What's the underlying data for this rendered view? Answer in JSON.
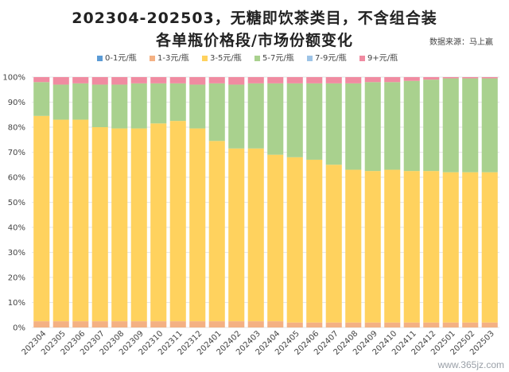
{
  "title_line1": "202304-202503，无糖即饮茶类目，不含组合装",
  "title_line2": "各单瓶价格段/市场份额变化",
  "source": "数据来源：马上赢",
  "watermark": "www.365jz.com",
  "chart_data": {
    "type": "bar",
    "stacked": true,
    "percent": true,
    "categories": [
      "202304",
      "202305",
      "202306",
      "202307",
      "202308",
      "202309",
      "202310",
      "202311",
      "202312",
      "202401",
      "202402",
      "202403",
      "202404",
      "202405",
      "202406",
      "202407",
      "202408",
      "202409",
      "202410",
      "202411",
      "202412",
      "202501",
      "202502",
      "202503"
    ],
    "series": [
      {
        "name": "0-1元/瓶",
        "color": "#5b9bd5",
        "values": [
          0,
          0,
          0,
          0,
          0,
          0,
          0,
          0,
          0,
          0,
          0,
          0,
          0,
          0,
          0,
          0,
          0,
          0,
          0,
          0,
          0,
          0,
          0,
          0
        ]
      },
      {
        "name": "1-3元/瓶",
        "color": "#f4b183",
        "values": [
          2.5,
          2.5,
          2.5,
          2.5,
          2.5,
          2.5,
          2.5,
          2.5,
          2.5,
          2.5,
          2.5,
          2.5,
          2.5,
          2,
          2,
          2,
          2,
          2,
          2,
          2,
          2,
          2,
          2,
          2
        ]
      },
      {
        "name": "3-5元/瓶",
        "color": "#ffd25e",
        "values": [
          82,
          80.5,
          80.5,
          77.5,
          77,
          77,
          79,
          80,
          77,
          72,
          69,
          69,
          66.5,
          66,
          65,
          63,
          61,
          60.5,
          61,
          60.5,
          60.5,
          60,
          60,
          60
        ]
      },
      {
        "name": "5-7元/瓶",
        "color": "#a9d18e",
        "values": [
          13.5,
          14,
          14.5,
          17,
          17.5,
          18,
          16,
          15,
          17.5,
          23,
          25.5,
          26,
          28.5,
          29.5,
          30.5,
          32.5,
          34.5,
          35.5,
          35,
          36,
          36.5,
          37.5,
          37.5,
          37.5
        ]
      },
      {
        "name": "7-9元/瓶",
        "color": "#9dc3e6",
        "values": [
          0,
          0,
          0,
          0,
          0,
          0,
          0,
          0,
          0,
          0,
          0,
          0,
          0,
          0,
          0,
          0,
          0,
          0,
          0,
          0,
          0,
          0,
          0,
          0
        ]
      },
      {
        "name": "9+元/瓶",
        "color": "#f08ba1",
        "values": [
          2,
          3,
          2.5,
          3,
          3,
          2.5,
          2.5,
          2.5,
          3,
          2.5,
          3,
          2.5,
          2.5,
          2.5,
          2.5,
          2.5,
          2.5,
          2,
          2,
          1.5,
          1,
          0.5,
          0.5,
          0.5
        ]
      }
    ],
    "yticks": [
      "0%",
      "10%",
      "20%",
      "30%",
      "40%",
      "50%",
      "60%",
      "70%",
      "80%",
      "90%",
      "100%"
    ],
    "ylim": [
      0,
      100
    ],
    "legend": "top"
  }
}
